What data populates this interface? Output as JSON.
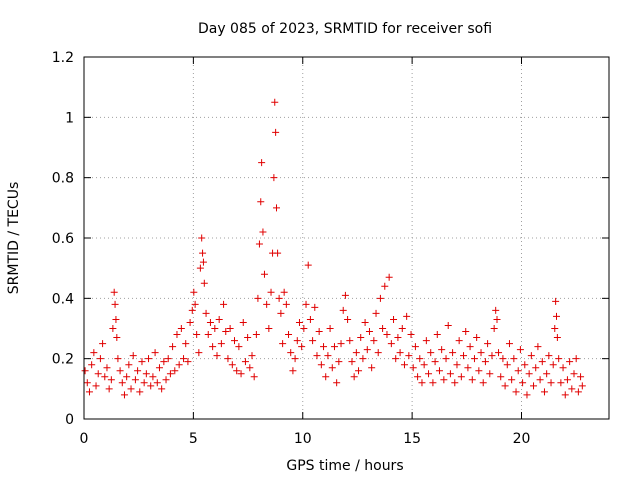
{
  "chart_data": {
    "type": "scatter",
    "title": "Day 085 of 2023, SRMTID for receiver sofi",
    "xlabel": "GPS time / hours",
    "ylabel": "SRMTID / TECUs",
    "xlim": [
      0,
      24
    ],
    "ylim": [
      0,
      1.2
    ],
    "xticks": [
      0,
      5,
      10,
      15,
      20
    ],
    "xtick_labels": [
      "0",
      "5",
      "10",
      "15",
      "20"
    ],
    "yticks": [
      0,
      0.2,
      0.4,
      0.6,
      0.8,
      1.0,
      1.2
    ],
    "ytick_labels": [
      "0",
      "0.2",
      "0.4",
      "0.6",
      "0.8",
      "1",
      "1.2"
    ],
    "grid": true,
    "marker": "+",
    "color": "#e00000",
    "series": [
      {
        "name": "SRMTID",
        "points": [
          [
            0.05,
            0.16
          ],
          [
            0.15,
            0.12
          ],
          [
            0.25,
            0.09
          ],
          [
            0.35,
            0.18
          ],
          [
            0.45,
            0.22
          ],
          [
            0.55,
            0.11
          ],
          [
            0.65,
            0.15
          ],
          [
            0.75,
            0.2
          ],
          [
            0.85,
            0.25
          ],
          [
            0.95,
            0.14
          ],
          [
            1.05,
            0.17
          ],
          [
            1.15,
            0.1
          ],
          [
            1.25,
            0.13
          ],
          [
            1.32,
            0.3
          ],
          [
            1.38,
            0.42
          ],
          [
            1.42,
            0.38
          ],
          [
            1.46,
            0.33
          ],
          [
            1.5,
            0.27
          ],
          [
            1.55,
            0.2
          ],
          [
            1.65,
            0.16
          ],
          [
            1.75,
            0.12
          ],
          [
            1.85,
            0.08
          ],
          [
            1.95,
            0.14
          ],
          [
            2.05,
            0.18
          ],
          [
            2.15,
            0.1
          ],
          [
            2.25,
            0.21
          ],
          [
            2.35,
            0.13
          ],
          [
            2.45,
            0.16
          ],
          [
            2.55,
            0.09
          ],
          [
            2.65,
            0.19
          ],
          [
            2.75,
            0.12
          ],
          [
            2.85,
            0.15
          ],
          [
            2.95,
            0.2
          ],
          [
            3.05,
            0.11
          ],
          [
            3.15,
            0.14
          ],
          [
            3.25,
            0.22
          ],
          [
            3.35,
            0.12
          ],
          [
            3.45,
            0.17
          ],
          [
            3.55,
            0.1
          ],
          [
            3.65,
            0.19
          ],
          [
            3.75,
            0.13
          ],
          [
            3.85,
            0.2
          ],
          [
            3.95,
            0.15
          ],
          [
            4.05,
            0.24
          ],
          [
            4.15,
            0.16
          ],
          [
            4.25,
            0.28
          ],
          [
            4.35,
            0.18
          ],
          [
            4.45,
            0.3
          ],
          [
            4.55,
            0.2
          ],
          [
            4.65,
            0.25
          ],
          [
            4.75,
            0.19
          ],
          [
            4.85,
            0.32
          ],
          [
            4.95,
            0.36
          ],
          [
            5.02,
            0.42
          ],
          [
            5.08,
            0.38
          ],
          [
            5.15,
            0.28
          ],
          [
            5.25,
            0.22
          ],
          [
            5.32,
            0.5
          ],
          [
            5.38,
            0.6
          ],
          [
            5.42,
            0.55
          ],
          [
            5.46,
            0.52
          ],
          [
            5.5,
            0.45
          ],
          [
            5.58,
            0.35
          ],
          [
            5.68,
            0.28
          ],
          [
            5.78,
            0.32
          ],
          [
            5.88,
            0.24
          ],
          [
            5.98,
            0.3
          ],
          [
            6.08,
            0.21
          ],
          [
            6.18,
            0.33
          ],
          [
            6.28,
            0.25
          ],
          [
            6.38,
            0.38
          ],
          [
            6.48,
            0.29
          ],
          [
            6.58,
            0.2
          ],
          [
            6.68,
            0.3
          ],
          [
            6.78,
            0.18
          ],
          [
            6.88,
            0.26
          ],
          [
            6.98,
            0.16
          ],
          [
            7.08,
            0.24
          ],
          [
            7.18,
            0.15
          ],
          [
            7.28,
            0.32
          ],
          [
            7.38,
            0.19
          ],
          [
            7.48,
            0.27
          ],
          [
            7.58,
            0.17
          ],
          [
            7.68,
            0.21
          ],
          [
            7.78,
            0.14
          ],
          [
            7.88,
            0.28
          ],
          [
            7.95,
            0.4
          ],
          [
            8.02,
            0.58
          ],
          [
            8.08,
            0.72
          ],
          [
            8.12,
            0.85
          ],
          [
            8.18,
            0.62
          ],
          [
            8.25,
            0.48
          ],
          [
            8.35,
            0.38
          ],
          [
            8.45,
            0.3
          ],
          [
            8.55,
            0.42
          ],
          [
            8.62,
            0.55
          ],
          [
            8.68,
            0.8
          ],
          [
            8.72,
            1.05
          ],
          [
            8.76,
            0.95
          ],
          [
            8.8,
            0.7
          ],
          [
            8.85,
            0.55
          ],
          [
            8.92,
            0.4
          ],
          [
            9.0,
            0.35
          ],
          [
            9.08,
            0.25
          ],
          [
            9.15,
            0.42
          ],
          [
            9.25,
            0.38
          ],
          [
            9.35,
            0.28
          ],
          [
            9.45,
            0.22
          ],
          [
            9.55,
            0.16
          ],
          [
            9.65,
            0.2
          ],
          [
            9.75,
            0.26
          ],
          [
            9.85,
            0.32
          ],
          [
            9.95,
            0.24
          ],
          [
            10.05,
            0.3
          ],
          [
            10.15,
            0.38
          ],
          [
            10.25,
            0.51
          ],
          [
            10.35,
            0.33
          ],
          [
            10.45,
            0.26
          ],
          [
            10.55,
            0.37
          ],
          [
            10.65,
            0.21
          ],
          [
            10.75,
            0.29
          ],
          [
            10.85,
            0.18
          ],
          [
            10.95,
            0.24
          ],
          [
            11.05,
            0.14
          ],
          [
            11.15,
            0.21
          ],
          [
            11.25,
            0.3
          ],
          [
            11.35,
            0.17
          ],
          [
            11.45,
            0.24
          ],
          [
            11.55,
            0.12
          ],
          [
            11.65,
            0.19
          ],
          [
            11.75,
            0.25
          ],
          [
            11.85,
            0.36
          ],
          [
            11.95,
            0.41
          ],
          [
            12.05,
            0.33
          ],
          [
            12.15,
            0.26
          ],
          [
            12.25,
            0.19
          ],
          [
            12.35,
            0.14
          ],
          [
            12.45,
            0.22
          ],
          [
            12.55,
            0.16
          ],
          [
            12.65,
            0.27
          ],
          [
            12.75,
            0.2
          ],
          [
            12.85,
            0.32
          ],
          [
            12.95,
            0.23
          ],
          [
            13.05,
            0.29
          ],
          [
            13.15,
            0.17
          ],
          [
            13.25,
            0.26
          ],
          [
            13.35,
            0.35
          ],
          [
            13.45,
            0.22
          ],
          [
            13.55,
            0.4
          ],
          [
            13.65,
            0.3
          ],
          [
            13.75,
            0.44
          ],
          [
            13.85,
            0.28
          ],
          [
            13.95,
            0.47
          ],
          [
            14.05,
            0.25
          ],
          [
            14.15,
            0.33
          ],
          [
            14.25,
            0.2
          ],
          [
            14.35,
            0.27
          ],
          [
            14.45,
            0.22
          ],
          [
            14.55,
            0.3
          ],
          [
            14.65,
            0.18
          ],
          [
            14.75,
            0.34
          ],
          [
            14.85,
            0.21
          ],
          [
            14.95,
            0.28
          ],
          [
            15.05,
            0.17
          ],
          [
            15.15,
            0.24
          ],
          [
            15.25,
            0.14
          ],
          [
            15.35,
            0.2
          ],
          [
            15.45,
            0.12
          ],
          [
            15.55,
            0.18
          ],
          [
            15.65,
            0.26
          ],
          [
            15.75,
            0.15
          ],
          [
            15.85,
            0.22
          ],
          [
            15.95,
            0.12
          ],
          [
            16.05,
            0.19
          ],
          [
            16.15,
            0.28
          ],
          [
            16.25,
            0.16
          ],
          [
            16.35,
            0.23
          ],
          [
            16.45,
            0.13
          ],
          [
            16.55,
            0.2
          ],
          [
            16.65,
            0.31
          ],
          [
            16.75,
            0.15
          ],
          [
            16.85,
            0.22
          ],
          [
            16.95,
            0.12
          ],
          [
            17.05,
            0.18
          ],
          [
            17.15,
            0.26
          ],
          [
            17.25,
            0.14
          ],
          [
            17.35,
            0.21
          ],
          [
            17.45,
            0.29
          ],
          [
            17.55,
            0.17
          ],
          [
            17.65,
            0.24
          ],
          [
            17.75,
            0.13
          ],
          [
            17.85,
            0.2
          ],
          [
            17.95,
            0.27
          ],
          [
            18.05,
            0.16
          ],
          [
            18.15,
            0.22
          ],
          [
            18.25,
            0.12
          ],
          [
            18.35,
            0.19
          ],
          [
            18.45,
            0.25
          ],
          [
            18.55,
            0.15
          ],
          [
            18.65,
            0.21
          ],
          [
            18.75,
            0.3
          ],
          [
            18.82,
            0.36
          ],
          [
            18.88,
            0.33
          ],
          [
            18.95,
            0.22
          ],
          [
            19.05,
            0.14
          ],
          [
            19.15,
            0.2
          ],
          [
            19.25,
            0.11
          ],
          [
            19.35,
            0.18
          ],
          [
            19.45,
            0.25
          ],
          [
            19.55,
            0.13
          ],
          [
            19.65,
            0.2
          ],
          [
            19.75,
            0.09
          ],
          [
            19.85,
            0.16
          ],
          [
            19.95,
            0.23
          ],
          [
            20.05,
            0.12
          ],
          [
            20.15,
            0.18
          ],
          [
            20.25,
            0.08
          ],
          [
            20.35,
            0.15
          ],
          [
            20.45,
            0.21
          ],
          [
            20.55,
            0.11
          ],
          [
            20.65,
            0.17
          ],
          [
            20.75,
            0.24
          ],
          [
            20.85,
            0.13
          ],
          [
            20.95,
            0.19
          ],
          [
            21.05,
            0.09
          ],
          [
            21.15,
            0.15
          ],
          [
            21.25,
            0.21
          ],
          [
            21.35,
            0.12
          ],
          [
            21.45,
            0.18
          ],
          [
            21.52,
            0.3
          ],
          [
            21.56,
            0.39
          ],
          [
            21.6,
            0.34
          ],
          [
            21.64,
            0.27
          ],
          [
            21.7,
            0.2
          ],
          [
            21.8,
            0.12
          ],
          [
            21.9,
            0.17
          ],
          [
            22.0,
            0.08
          ],
          [
            22.1,
            0.13
          ],
          [
            22.2,
            0.19
          ],
          [
            22.3,
            0.1
          ],
          [
            22.4,
            0.15
          ],
          [
            22.5,
            0.2
          ],
          [
            22.6,
            0.09
          ],
          [
            22.7,
            0.14
          ],
          [
            22.78,
            0.11
          ]
        ]
      }
    ]
  }
}
